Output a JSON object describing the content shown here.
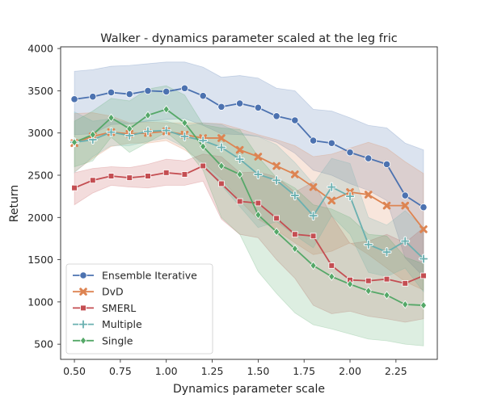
{
  "chart_data": {
    "type": "line",
    "title": "Walker - dynamics parameter scaled at the leg fric",
    "xlabel": "Dynamics parameter scale",
    "ylabel": "Return",
    "xlim": [
      0.425,
      2.475
    ],
    "ylim": [
      320,
      4020
    ],
    "xticks": [
      "0.50",
      "0.75",
      "1.00",
      "1.25",
      "1.50",
      "1.75",
      "2.00",
      "2.25"
    ],
    "yticks": [
      "500",
      "1000",
      "1500",
      "2000",
      "2500",
      "3000",
      "3500",
      "4000"
    ],
    "grid": false,
    "legend_position": "lower-left",
    "x": [
      0.5,
      0.6,
      0.7,
      0.8,
      0.9,
      1.0,
      1.1,
      1.2,
      1.3,
      1.4,
      1.5,
      1.6,
      1.7,
      1.8,
      1.9,
      2.0,
      2.1,
      2.2,
      2.3,
      2.4
    ],
    "series": [
      {
        "name": "Ensemble Iterative",
        "color": "#4c72b0",
        "marker": "circle",
        "values": [
          3400,
          3430,
          3480,
          3460,
          3500,
          3490,
          3530,
          3440,
          3310,
          3350,
          3300,
          3200,
          3150,
          2910,
          2880,
          2770,
          2700,
          2630,
          2260,
          2120
        ],
        "lower": [
          2980,
          2990,
          3100,
          3110,
          3140,
          3160,
          3170,
          3090,
          2990,
          2980,
          2960,
          2890,
          2760,
          2560,
          2500,
          2400,
          2320,
          2200,
          1520,
          1300
        ],
        "upper": [
          3730,
          3750,
          3790,
          3800,
          3820,
          3840,
          3840,
          3780,
          3660,
          3680,
          3650,
          3530,
          3500,
          3280,
          3260,
          3180,
          3090,
          3060,
          2880,
          2800
        ]
      },
      {
        "name": "DvD",
        "color": "#dd8452",
        "marker": "x",
        "values": [
          2880,
          2960,
          3010,
          2990,
          3000,
          3020,
          2980,
          2940,
          2940,
          2800,
          2720,
          2610,
          2510,
          2360,
          2200,
          2300,
          2270,
          2140,
          2140,
          1860
        ],
        "lower": [
          2540,
          2700,
          2840,
          2880,
          2880,
          2910,
          2800,
          2650,
          2460,
          2200,
          1980,
          1850,
          1700,
          1560,
          1600,
          1700,
          1560,
          1400,
          1240,
          1140
        ],
        "upper": [
          3230,
          3240,
          3200,
          3120,
          3130,
          3120,
          3120,
          3120,
          3110,
          3050,
          2980,
          2920,
          2850,
          2720,
          2750,
          2820,
          2890,
          2820,
          2660,
          2520
        ]
      },
      {
        "name": "SMERL",
        "color": "#c44e52",
        "marker": "square",
        "values": [
          2350,
          2440,
          2490,
          2470,
          2490,
          2530,
          2510,
          2610,
          2400,
          2190,
          2170,
          1990,
          1800,
          1780,
          1430,
          1260,
          1250,
          1270,
          1220,
          1310
        ],
        "lower": [
          2150,
          2290,
          2380,
          2360,
          2350,
          2380,
          2380,
          2430,
          1980,
          1800,
          1760,
          1500,
          1280,
          960,
          860,
          890,
          830,
          800,
          760,
          800
        ],
        "upper": [
          2530,
          2580,
          2600,
          2590,
          2630,
          2690,
          2670,
          2750,
          2720,
          2530,
          2540,
          2480,
          2300,
          2420,
          2020,
          1690,
          1720,
          1800,
          1700,
          1880
        ]
      },
      {
        "name": "Multiple",
        "color": "#6ab0b0",
        "marker": "plus",
        "values": [
          2890,
          2920,
          3010,
          2970,
          3020,
          3030,
          2960,
          2910,
          2830,
          2690,
          2510,
          2440,
          2260,
          2020,
          2360,
          2250,
          1680,
          1590,
          1720,
          1510
        ],
        "lower": [
          2530,
          2720,
          2850,
          2850,
          2900,
          2940,
          2830,
          2620,
          2380,
          2130,
          1880,
          1950,
          1790,
          1640,
          2020,
          1800,
          1350,
          1300,
          1400,
          1120
        ],
        "upper": [
          3250,
          3140,
          3170,
          3110,
          3150,
          3140,
          3080,
          3120,
          3100,
          3000,
          2960,
          2860,
          2650,
          2400,
          2700,
          2640,
          2000,
          1910,
          2080,
          1880
        ]
      },
      {
        "name": "Single",
        "color": "#55a868",
        "marker": "diamond",
        "values": [
          2890,
          2980,
          3180,
          3050,
          3210,
          3280,
          3120,
          2840,
          2610,
          2510,
          2030,
          1830,
          1630,
          1430,
          1300,
          1210,
          1130,
          1080,
          970,
          960
        ],
        "lower": [
          2600,
          2670,
          2950,
          2770,
          2890,
          3010,
          2830,
          2560,
          2000,
          1800,
          1360,
          1100,
          870,
          730,
          680,
          620,
          560,
          540,
          500,
          480
        ],
        "upper": [
          3140,
          3260,
          3410,
          3380,
          3520,
          3560,
          3450,
          3100,
          3060,
          3040,
          2720,
          2470,
          2350,
          2150,
          2100,
          2000,
          1800,
          1780,
          1530,
          1450
        ]
      }
    ]
  }
}
